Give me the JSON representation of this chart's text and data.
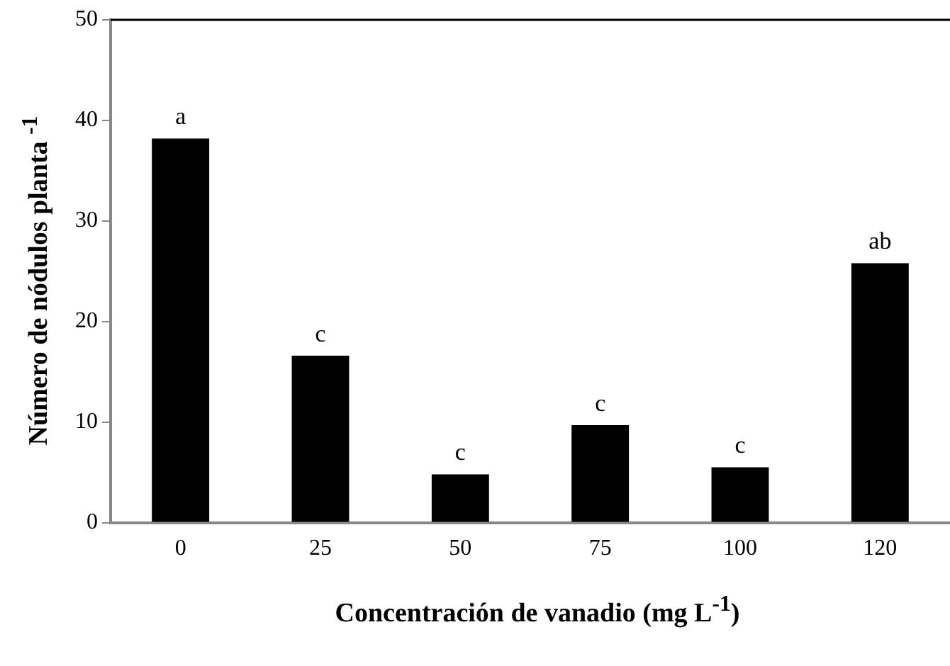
{
  "chart_data": {
    "type": "bar",
    "xlabel": "Concentración de vanadio (mg L$^{-1}$)",
    "ylabel": "Número de nódulos planta $^{-1}$",
    "categories": [
      "0",
      "25",
      "50",
      "75",
      "100",
      "120"
    ],
    "values": [
      38.2,
      16.6,
      4.8,
      9.7,
      5.5,
      25.8
    ],
    "color": "#000000",
    "ylim": [
      0,
      50
    ],
    "yticks": [
      0,
      10,
      20,
      30,
      40,
      50
    ],
    "grid": false,
    "legend": false,
    "annotations": [
      {
        "text": "a",
        "x": "0",
        "y": 38.2
      },
      {
        "text": "c",
        "x": "25",
        "y": 16.6
      },
      {
        "text": "c",
        "x": "50",
        "y": 4.8
      },
      {
        "text": "c",
        "x": "75",
        "y": 9.7
      },
      {
        "text": "c",
        "x": "100",
        "y": 5.5
      },
      {
        "text": "ab",
        "x": "120",
        "y": 25.8
      }
    ]
  }
}
